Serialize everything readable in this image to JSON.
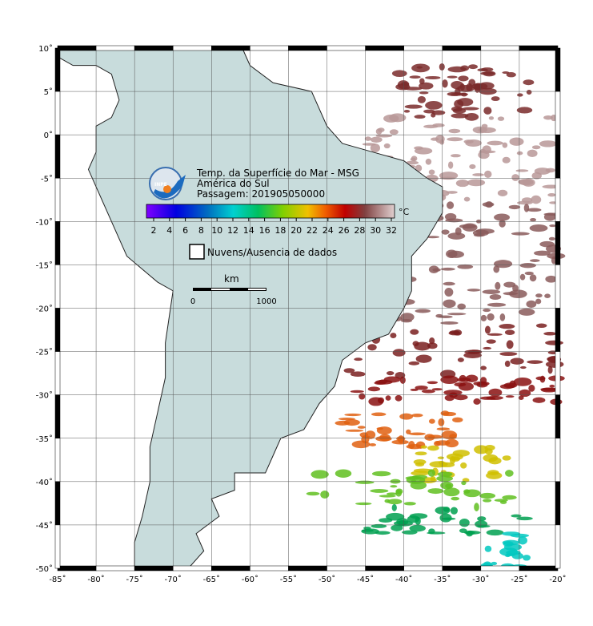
{
  "map": {
    "title": "Temp. da Superfície do Mar - MSG",
    "region": "América do Sul",
    "pass": "Passagem: 201905050000",
    "logo_text": "INPE",
    "lon_ticks": [
      {
        "value": -85,
        "label": "-85˚"
      },
      {
        "value": -80,
        "label": "-80˚"
      },
      {
        "value": -75,
        "label": "-75˚"
      },
      {
        "value": -70,
        "label": "-70˚"
      },
      {
        "value": -65,
        "label": "-65˚"
      },
      {
        "value": -60,
        "label": "-60˚"
      },
      {
        "value": -55,
        "label": "-55˚"
      },
      {
        "value": -50,
        "label": "-50˚"
      },
      {
        "value": -45,
        "label": "-45˚"
      },
      {
        "value": -40,
        "label": "-40˚"
      },
      {
        "value": -35,
        "label": "-35˚"
      },
      {
        "value": -30,
        "label": "-30˚"
      },
      {
        "value": -25,
        "label": "-25˚"
      },
      {
        "value": -20,
        "label": "-20˚"
      }
    ],
    "lat_ticks": [
      {
        "value": 10,
        "label": "10˚"
      },
      {
        "value": 5,
        "label": "5˚"
      },
      {
        "value": 0,
        "label": "0˚"
      },
      {
        "value": -5,
        "label": "-5˚"
      },
      {
        "value": -10,
        "label": "-10˚"
      },
      {
        "value": -15,
        "label": "-15˚"
      },
      {
        "value": -20,
        "label": "-20˚"
      },
      {
        "value": -25,
        "label": "-25˚"
      },
      {
        "value": -30,
        "label": "-30˚"
      },
      {
        "value": -35,
        "label": "-35˚"
      },
      {
        "value": -40,
        "label": "-40˚"
      },
      {
        "value": -45,
        "label": "-45˚"
      },
      {
        "value": -50,
        "label": "-50˚"
      }
    ],
    "colorbar": {
      "unit": "°C",
      "ticks": [
        2,
        4,
        6,
        8,
        10,
        12,
        14,
        16,
        18,
        20,
        22,
        24,
        26,
        28,
        30,
        32
      ]
    },
    "legend": "Nuvens/Ausencia de dados",
    "scale": {
      "unit": "km",
      "start": 0,
      "end": 1000
    }
  }
}
